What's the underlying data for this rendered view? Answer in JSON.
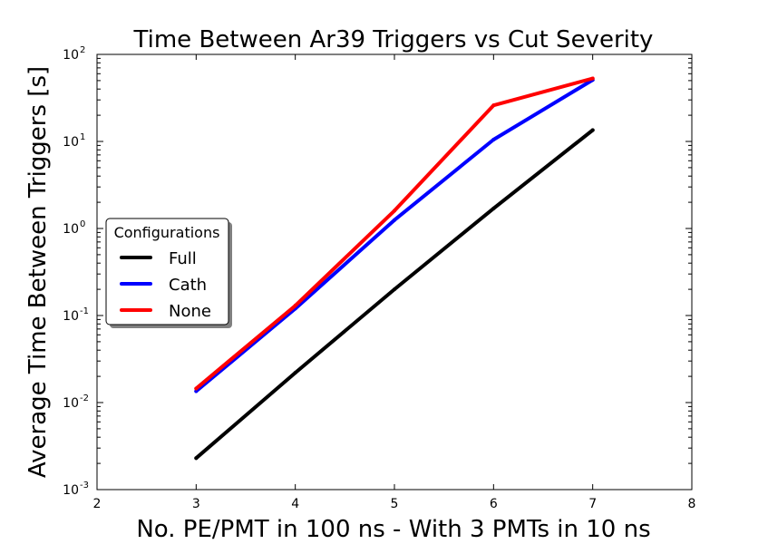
{
  "chart_data": {
    "type": "line",
    "title": "Time Between Ar39 Triggers vs Cut Severity",
    "xlabel": "No. PE/PMT in 100 ns - With 3 PMTs in 10 ns",
    "ylabel": "Average Time Between Triggers [s]",
    "xlim": [
      2,
      8
    ],
    "ylim": [
      0.001,
      100
    ],
    "yscale": "log",
    "x_ticks": [
      "2",
      "3",
      "4",
      "5",
      "6",
      "7",
      "8"
    ],
    "y_ticks": [
      {
        "base": "10",
        "exp": "-3"
      },
      {
        "base": "10",
        "exp": "-2"
      },
      {
        "base": "10",
        "exp": "-1"
      },
      {
        "base": "10",
        "exp": "0"
      },
      {
        "base": "10",
        "exp": "1"
      },
      {
        "base": "10",
        "exp": "2"
      }
    ],
    "x": [
      3,
      4,
      5,
      6,
      7
    ],
    "series": [
      {
        "name": "Full",
        "color": "#000000",
        "values": [
          0.0023,
          0.022,
          0.2,
          1.7,
          13.5
        ]
      },
      {
        "name": "Cath",
        "color": "#0000ff",
        "values": [
          0.0135,
          0.12,
          1.25,
          10.5,
          51
        ]
      },
      {
        "name": "None",
        "color": "#ff0000",
        "values": [
          0.0145,
          0.13,
          1.6,
          26,
          53
        ]
      }
    ],
    "legend": {
      "title": "Configurations",
      "position": "center-left"
    },
    "grid": false
  }
}
